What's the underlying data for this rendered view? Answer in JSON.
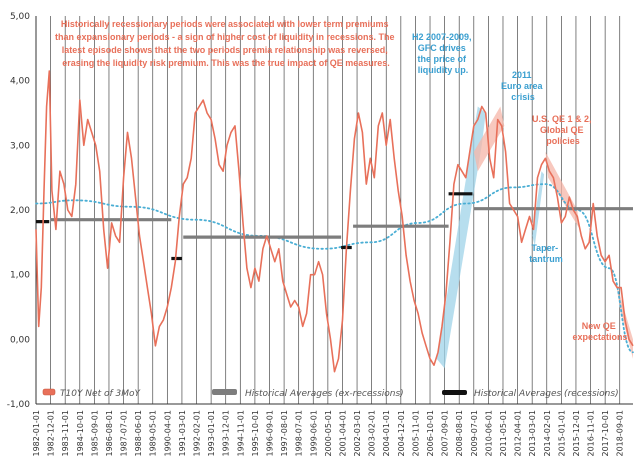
{
  "chart_data": {
    "type": "line",
    "ylim": [
      -1,
      5
    ],
    "y_ticks": [
      "-1,00",
      "0,00",
      "1,00",
      "2,00",
      "3,00",
      "4,00",
      "5,00"
    ],
    "x_range": [
      "1982-01-01",
      "2019-07-01"
    ],
    "x_tick_labels": [
      "1982-01-01",
      "1982-12-01",
      "1983-11-01",
      "1984-10-01",
      "1985-09-01",
      "1986-08-01",
      "1987-07-01",
      "1988-06-01",
      "1989-05-01",
      "1990-04-01",
      "1991-03-01",
      "1992-02-01",
      "1993-01-01",
      "1993-12-01",
      "1994-11-01",
      "1995-10-01",
      "1996-09-01",
      "1997-08-01",
      "1998-07-01",
      "1999-06-01",
      "2000-05-01",
      "2001-04-01",
      "2002-03-01",
      "2003-02-01",
      "2004-01-01",
      "2004-12-01",
      "2005-11-01",
      "2006-10-01",
      "2007-09-01",
      "2008-08-01",
      "2009-07-01",
      "2010-06-01",
      "2011-05-01",
      "2012-04-01",
      "2013-03-01",
      "2014-02-01",
      "2015-01-01",
      "2015-12-01",
      "2016-11-01",
      "2017-10-01",
      "2018-09-01"
    ],
    "grid": "vertical lines at every month tick",
    "series": [
      {
        "name": "T10Y Net of 3MoY",
        "color": "#e8705a",
        "points": [
          [
            "1982-01-01",
            1.7
          ],
          [
            "1982-03-01",
            0.2
          ],
          [
            "1982-05-01",
            0.8
          ],
          [
            "1982-07-01",
            2.3
          ],
          [
            "1982-09-01",
            3.6
          ],
          [
            "1982-11-01",
            4.15
          ],
          [
            "1983-01-01",
            2.3
          ],
          [
            "1983-04-01",
            1.7
          ],
          [
            "1983-07-01",
            2.6
          ],
          [
            "1983-10-01",
            2.4
          ],
          [
            "1984-01-01",
            2.0
          ],
          [
            "1984-04-01",
            1.9
          ],
          [
            "1984-07-01",
            2.4
          ],
          [
            "1984-10-01",
            3.7
          ],
          [
            "1985-01-01",
            3.0
          ],
          [
            "1985-04-01",
            3.4
          ],
          [
            "1985-07-01",
            3.2
          ],
          [
            "1985-10-01",
            3.0
          ],
          [
            "1986-01-01",
            2.6
          ],
          [
            "1986-04-01",
            1.7
          ],
          [
            "1986-07-01",
            1.1
          ],
          [
            "1986-10-01",
            1.8
          ],
          [
            "1987-01-01",
            1.6
          ],
          [
            "1987-04-01",
            1.5
          ],
          [
            "1987-07-01",
            2.5
          ],
          [
            "1987-10-01",
            3.2
          ],
          [
            "1988-01-01",
            2.8
          ],
          [
            "1988-04-01",
            2.2
          ],
          [
            "1988-07-01",
            1.6
          ],
          [
            "1988-10-01",
            1.2
          ],
          [
            "1989-01-01",
            0.8
          ],
          [
            "1989-04-01",
            0.4
          ],
          [
            "1989-07-01",
            -0.1
          ],
          [
            "1989-10-01",
            0.2
          ],
          [
            "1990-01-01",
            0.3
          ],
          [
            "1990-04-01",
            0.5
          ],
          [
            "1990-07-01",
            0.8
          ],
          [
            "1990-10-01",
            1.2
          ],
          [
            "1991-01-01",
            1.9
          ],
          [
            "1991-04-01",
            2.4
          ],
          [
            "1991-07-01",
            2.5
          ],
          [
            "1991-10-01",
            2.8
          ],
          [
            "1992-01-01",
            3.5
          ],
          [
            "1992-04-01",
            3.6
          ],
          [
            "1992-07-01",
            3.7
          ],
          [
            "1992-10-01",
            3.5
          ],
          [
            "1993-01-01",
            3.4
          ],
          [
            "1993-04-01",
            3.1
          ],
          [
            "1993-07-01",
            2.7
          ],
          [
            "1993-10-01",
            2.6
          ],
          [
            "1994-01-01",
            3.0
          ],
          [
            "1994-04-01",
            3.2
          ],
          [
            "1994-07-01",
            3.3
          ],
          [
            "1994-10-01",
            2.6
          ],
          [
            "1995-01-01",
            1.8
          ],
          [
            "1995-04-01",
            1.1
          ],
          [
            "1995-07-01",
            0.8
          ],
          [
            "1995-10-01",
            1.1
          ],
          [
            "1996-01-01",
            0.9
          ],
          [
            "1996-04-01",
            1.4
          ],
          [
            "1996-07-01",
            1.6
          ],
          [
            "1996-10-01",
            1.4
          ],
          [
            "1997-01-01",
            1.2
          ],
          [
            "1997-04-01",
            1.4
          ],
          [
            "1997-07-01",
            0.9
          ],
          [
            "1997-10-01",
            0.7
          ],
          [
            "1998-01-01",
            0.5
          ],
          [
            "1998-04-01",
            0.6
          ],
          [
            "1998-07-01",
            0.5
          ],
          [
            "1998-10-01",
            0.2
          ],
          [
            "1999-01-01",
            0.4
          ],
          [
            "1999-04-01",
            1.0
          ],
          [
            "1999-07-01",
            1.0
          ],
          [
            "1999-10-01",
            1.2
          ],
          [
            "2000-01-01",
            1.0
          ],
          [
            "2000-04-01",
            0.4
          ],
          [
            "2000-07-01",
            0.0
          ],
          [
            "2000-10-01",
            -0.5
          ],
          [
            "2001-01-01",
            -0.3
          ],
          [
            "2001-04-01",
            0.3
          ],
          [
            "2001-07-01",
            1.4
          ],
          [
            "2001-10-01",
            2.3
          ],
          [
            "2002-01-01",
            3.1
          ],
          [
            "2002-04-01",
            3.5
          ],
          [
            "2002-07-01",
            3.2
          ],
          [
            "2002-10-01",
            2.4
          ],
          [
            "2003-01-01",
            2.8
          ],
          [
            "2003-04-01",
            2.5
          ],
          [
            "2003-07-01",
            3.3
          ],
          [
            "2003-10-01",
            3.5
          ],
          [
            "2004-01-01",
            3.0
          ],
          [
            "2004-04-01",
            3.4
          ],
          [
            "2004-07-01",
            2.8
          ],
          [
            "2004-10-01",
            2.3
          ],
          [
            "2005-01-01",
            1.9
          ],
          [
            "2005-04-01",
            1.3
          ],
          [
            "2005-07-01",
            0.9
          ],
          [
            "2005-10-01",
            0.6
          ],
          [
            "2006-01-01",
            0.4
          ],
          [
            "2006-04-01",
            0.1
          ],
          [
            "2006-07-01",
            -0.1
          ],
          [
            "2006-10-01",
            -0.3
          ],
          [
            "2007-01-01",
            -0.4
          ],
          [
            "2007-04-01",
            -0.2
          ],
          [
            "2007-07-01",
            0.2
          ],
          [
            "2007-10-01",
            0.7
          ],
          [
            "2008-01-01",
            1.5
          ],
          [
            "2008-04-01",
            2.4
          ],
          [
            "2008-07-01",
            2.7
          ],
          [
            "2008-10-01",
            2.6
          ],
          [
            "2009-01-01",
            2.5
          ],
          [
            "2009-04-01",
            2.9
          ],
          [
            "2009-07-01",
            3.3
          ],
          [
            "2009-10-01",
            3.4
          ],
          [
            "2010-01-01",
            3.6
          ],
          [
            "2010-04-01",
            3.5
          ],
          [
            "2010-07-01",
            2.8
          ],
          [
            "2010-10-01",
            2.5
          ],
          [
            "2011-01-01",
            3.4
          ],
          [
            "2011-04-01",
            3.3
          ],
          [
            "2011-07-01",
            2.9
          ],
          [
            "2011-10-01",
            2.1
          ],
          [
            "2012-01-01",
            2.0
          ],
          [
            "2012-04-01",
            1.9
          ],
          [
            "2012-07-01",
            1.5
          ],
          [
            "2012-10-01",
            1.7
          ],
          [
            "2013-01-01",
            1.9
          ],
          [
            "2013-04-01",
            1.7
          ],
          [
            "2013-07-01",
            2.5
          ],
          [
            "2013-10-01",
            2.7
          ],
          [
            "2014-01-01",
            2.8
          ],
          [
            "2014-04-01",
            2.6
          ],
          [
            "2014-07-01",
            2.5
          ],
          [
            "2014-10-01",
            2.2
          ],
          [
            "2015-01-01",
            1.8
          ],
          [
            "2015-04-01",
            1.9
          ],
          [
            "2015-07-01",
            2.2
          ],
          [
            "2015-10-01",
            2.0
          ],
          [
            "2016-01-01",
            1.9
          ],
          [
            "2016-04-01",
            1.6
          ],
          [
            "2016-07-01",
            1.4
          ],
          [
            "2016-10-01",
            1.5
          ],
          [
            "2017-01-01",
            2.1
          ],
          [
            "2017-04-01",
            1.6
          ],
          [
            "2017-07-01",
            1.3
          ],
          [
            "2017-10-01",
            1.2
          ],
          [
            "2018-01-01",
            1.3
          ],
          [
            "2018-04-01",
            0.9
          ],
          [
            "2018-07-01",
            0.8
          ],
          [
            "2018-10-01",
            0.8
          ],
          [
            "2019-01-01",
            0.3
          ],
          [
            "2019-04-01",
            0.0
          ],
          [
            "2019-07-01",
            -0.1
          ]
        ]
      },
      {
        "name": "Historical Averages (ex-recessions)",
        "color": "#7d7d7d",
        "segments": [
          {
            "x0": "1982-12-01",
            "x1": "1990-07-01",
            "y": 1.85
          },
          {
            "x0": "1991-04-01",
            "x1": "2001-03-01",
            "y": 1.58
          },
          {
            "x0": "2001-12-01",
            "x1": "2007-12-01",
            "y": 1.75
          },
          {
            "x0": "2009-07-01",
            "x1": "2019-07-01",
            "y": 2.02
          }
        ]
      },
      {
        "name": "Historical Averages (recessions)",
        "color": "#111111",
        "segments": [
          {
            "x0": "1982-01-01",
            "x1": "1982-11-01",
            "y": 1.82
          },
          {
            "x0": "1990-07-01",
            "x1": "1991-03-01",
            "y": 1.25
          },
          {
            "x0": "2001-03-01",
            "x1": "2001-11-01",
            "y": 1.42
          },
          {
            "x0": "2007-12-01",
            "x1": "2009-06-01",
            "y": 2.25
          }
        ]
      }
    ],
    "trend": {
      "color": "#4aaed4",
      "points": [
        [
          "1982-01-01",
          2.1
        ],
        [
          "1984-06-01",
          2.15
        ],
        [
          "1988-01-01",
          2.05
        ],
        [
          "1992-01-01",
          1.85
        ],
        [
          "1996-01-01",
          1.6
        ],
        [
          "2000-01-01",
          1.4
        ],
        [
          "2003-01-01",
          1.5
        ],
        [
          "2006-01-01",
          1.8
        ],
        [
          "2009-01-01",
          2.1
        ],
        [
          "2012-01-01",
          2.35
        ],
        [
          "2014-01-01",
          2.4
        ],
        [
          "2016-01-01",
          2.0
        ],
        [
          "2018-01-01",
          1.1
        ],
        [
          "2019-07-01",
          -0.2
        ]
      ]
    },
    "highlights": [
      {
        "color": "#9fd3e8",
        "points": [
          [
            "2007-03-01",
            -0.3
          ],
          [
            "2009-10-01",
            3.6
          ],
          [
            "2010-04-01",
            3.5
          ],
          [
            "2010-01-01",
            3.0
          ],
          [
            "2007-09-01",
            -0.45
          ]
        ]
      },
      {
        "color": "#9fd3e8",
        "points": [
          [
            "2013-03-01",
            1.6
          ],
          [
            "2013-10-01",
            2.6
          ],
          [
            "2013-12-01",
            2.55
          ],
          [
            "2013-05-01",
            1.45
          ]
        ]
      },
      {
        "color": "#f5b6a8",
        "points": [
          [
            "2009-07-01",
            2.9
          ],
          [
            "2011-03-01",
            3.6
          ],
          [
            "2011-06-01",
            3.3
          ],
          [
            "2009-10-01",
            2.6
          ]
        ]
      },
      {
        "color": "#f5b6a8",
        "points": [
          [
            "2014-01-01",
            2.9
          ],
          [
            "2016-01-01",
            2.0
          ],
          [
            "2016-03-01",
            1.7
          ],
          [
            "2014-03-01",
            2.5
          ]
        ]
      },
      {
        "color": "#f5b6a8",
        "points": [
          [
            "2018-06-01",
            0.9
          ],
          [
            "2019-07-01",
            0.0
          ],
          [
            "2019-07-01",
            -0.3
          ],
          [
            "2018-09-01",
            0.5
          ]
        ]
      }
    ],
    "annotations": {
      "main_note": [
        "Historically recessionary periods were associated with lower term premiums",
        "than expansionary periods - a sign of higher cost of liquidity in recessions. The",
        "latest episode shows that the two periods premia relationship was reversed,",
        "erasing the liquidity risk premium. This was the true impact of QE measures."
      ],
      "gfc": [
        "H2 2007-2009,",
        "GFC drives",
        "the price of",
        "liquidity up."
      ],
      "euro": [
        "2011",
        "Euro area",
        "crisis"
      ],
      "qe": [
        "U.S. QE 1 & 2,",
        "Global QE",
        "policies"
      ],
      "taper": [
        "Taper-",
        "tantrum"
      ],
      "new_qe": [
        "New QE",
        "expectations"
      ]
    },
    "legend": {
      "placement": "bottom",
      "items": [
        "T10Y Net of 3MoY",
        "Historical Averages (ex-recessions)",
        "Historical Averages (recessions)"
      ]
    },
    "colors": {
      "note_text": "#e8705a",
      "blue_text": "#3a9fd0",
      "gray_line": "#7d7d7d",
      "black_line": "#111111",
      "grid": "#4a4a4a"
    }
  }
}
